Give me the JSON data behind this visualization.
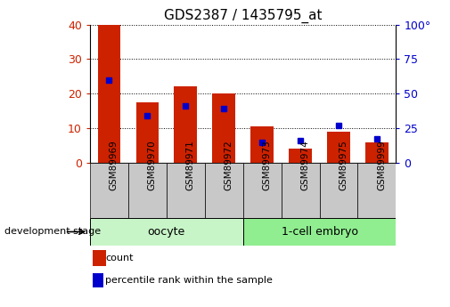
{
  "title": "GDS2387 / 1435795_at",
  "samples": [
    "GSM89969",
    "GSM89970",
    "GSM89971",
    "GSM89972",
    "GSM89973",
    "GSM89974",
    "GSM89975",
    "GSM89999"
  ],
  "counts": [
    40,
    17.5,
    22,
    20,
    10.5,
    4,
    9,
    6
  ],
  "percentile_ranks": [
    60,
    34,
    41,
    39,
    15,
    16,
    27,
    17
  ],
  "groups": [
    {
      "label": "oocyte",
      "start": 0,
      "end": 4
    },
    {
      "label": "1-cell embryo",
      "start": 4,
      "end": 8
    }
  ],
  "group_colors": [
    "#c8f5c8",
    "#90ee90"
  ],
  "bar_color": "#cc2200",
  "percentile_color": "#0000cc",
  "ylim_left": [
    0,
    40
  ],
  "ylim_right": [
    0,
    100
  ],
  "yticks_left": [
    0,
    10,
    20,
    30,
    40
  ],
  "yticks_right": [
    0,
    25,
    50,
    75,
    100
  ],
  "ylabel_left_color": "#cc2200",
  "ylabel_right_color": "#0000cc",
  "tick_bg_color": "#c8c8c8",
  "dev_stage_label": "development stage",
  "legend_count": "count",
  "legend_percentile": "percentile rank within the sample"
}
